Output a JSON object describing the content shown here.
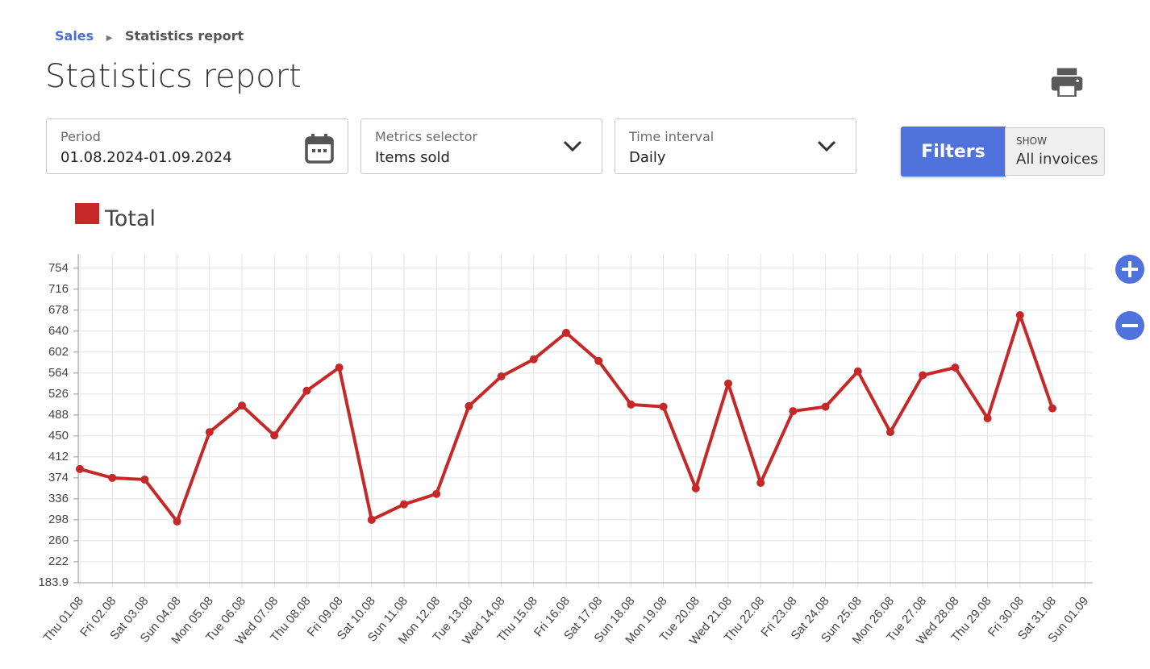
{
  "breadcrumb": {
    "parent": "Sales",
    "current": "Statistics report"
  },
  "title": "Statistics report",
  "fields": [
    {
      "label": "Period",
      "value": "01.08.2024-01.09.2024"
    },
    {
      "label": "Metrics selector",
      "value": "Items sold"
    },
    {
      "label": "Time interval",
      "value": "Daily"
    }
  ],
  "filters": "Filters",
  "show": {
    "label": "SHOW",
    "value": "All invoices"
  },
  "chart_data": {
    "type": "line",
    "categories": [
      "Thu 01.08",
      "Fri 02.08",
      "Sat 03.08",
      "Sun 04.08",
      "Mon 05.08",
      "Tue 06.08",
      "Wed 07.08",
      "Thu 08.08",
      "Fri 09.08",
      "Sat 10.08",
      "Sun 11.08",
      "Mon 12.08",
      "Tue 13.08",
      "Wed 14.08",
      "Thu 15.08",
      "Fri 16.08",
      "Sat 17.08",
      "Sun 18.08",
      "Mon 19.08",
      "Tue 20.08",
      "Wed 21.08",
      "Thu 22.08",
      "Fri 23.08",
      "Sat 24.08",
      "Sun 25.08",
      "Mon 26.08",
      "Tue 27.08",
      "Wed 28.08",
      "Thu 29.08",
      "Fri 30.08",
      "Sat 31.08",
      "Sun 01.09"
    ],
    "series": [
      {
        "name": "Total",
        "color": "#c62828",
        "values": [
          390,
          374,
          371,
          295,
          457,
          505,
          451,
          532,
          574,
          298,
          326,
          345,
          504,
          558,
          589,
          637,
          586,
          507,
          503,
          355,
          545,
          365,
          495,
          503,
          567,
          457,
          560,
          574,
          482,
          669,
          500,
          null
        ]
      }
    ],
    "ylim": [
      183.9,
      780
    ],
    "yticks": [
      183.9,
      222,
      260,
      298,
      336,
      374,
      412,
      450,
      488,
      526,
      564,
      602,
      640,
      678,
      716,
      754
    ],
    "grid": true
  }
}
